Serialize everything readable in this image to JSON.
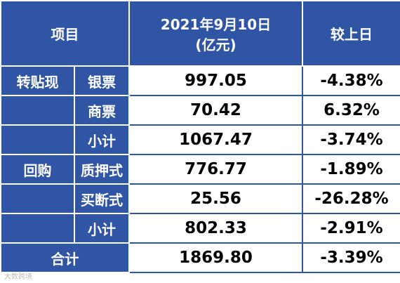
{
  "header": {
    "item": "项目",
    "date_line1": "2021年9月10日",
    "date_line2": "(亿元)",
    "change": "较上日"
  },
  "rows": [
    {
      "group": "转贴现",
      "item": "银票",
      "value": "997.05",
      "change": "-4.38%"
    },
    {
      "item": "商票",
      "value": "70.42",
      "change": "6.32%"
    },
    {
      "item": "小计",
      "value": "1067.47",
      "change": "-3.74%"
    },
    {
      "group": "回购",
      "item": "质押式",
      "value": "776.77",
      "change": "-1.89%"
    },
    {
      "item": "买断式",
      "value": "25.56",
      "change": "-26.28%"
    },
    {
      "item": "小计",
      "value": "802.33",
      "change": "-2.91%"
    }
  ],
  "total": {
    "item": "合计",
    "value": "1869.80",
    "change": "-3.39%"
  },
  "watermark": "大数跨境"
}
